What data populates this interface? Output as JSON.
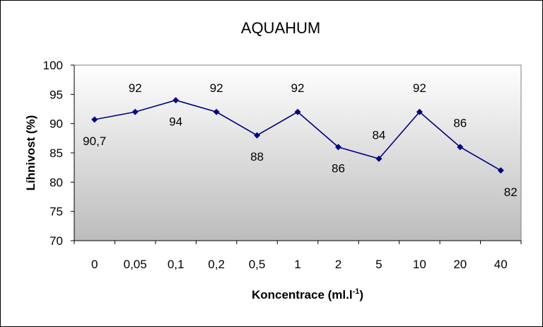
{
  "chart_data": {
    "type": "line",
    "title": "AQUAHUM",
    "xlabel": "Koncentrace (ml.l",
    "xlabel_sup": "-1",
    "xlabel_end": ")",
    "ylabel": "Líhnivost (%)",
    "categories": [
      "0",
      "0,05",
      "0,1",
      "0,2",
      "0,5",
      "1",
      "2",
      "5",
      "10",
      "20",
      "40"
    ],
    "values": [
      90.7,
      92,
      94,
      92,
      88,
      92,
      86,
      84,
      92,
      86,
      82
    ],
    "data_labels": [
      "90,7",
      "92",
      "94",
      "92",
      "88",
      "92",
      "86",
      "84",
      "92",
      "86",
      "82"
    ],
    "label_side": [
      "below",
      "above",
      "below",
      "above",
      "below",
      "above",
      "below",
      "above",
      "above",
      "above",
      "below"
    ],
    "ylim": [
      70,
      100
    ],
    "yticks": [
      70,
      75,
      80,
      85,
      90,
      95,
      100
    ],
    "grid": false,
    "legend": "none",
    "colors": {
      "line": "#000080",
      "marker": "#000080",
      "plot_bg_top": "#ffffff",
      "plot_bg_bottom": "#bcbcbc",
      "axis": "#000000",
      "plot_border": "#808080"
    }
  }
}
